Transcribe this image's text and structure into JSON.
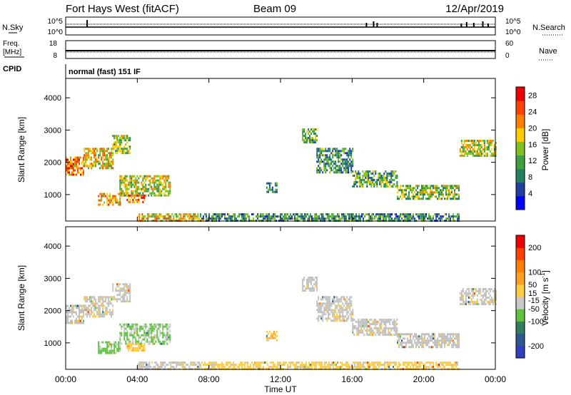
{
  "header": {
    "station": "Fort Hays West (fitACF)",
    "beam": "Beam 09",
    "date": "12/Apr/2019"
  },
  "top_panels": {
    "nsky": {
      "label": "N.Sky",
      "ticks": [
        "10^5",
        "10^0"
      ],
      "right_label": "N.Search",
      "right_ticks": [
        "10^5",
        "10^0"
      ]
    },
    "freq": {
      "label_line1": "Freq.",
      "label_line2": "[MHz]",
      "ticks": [
        "18",
        "8"
      ],
      "right_label": "Nave",
      "right_ticks": [
        "60",
        "0"
      ]
    },
    "cpid": {
      "label": "CPID",
      "value": "normal (fast) 151 IF"
    }
  },
  "colors": {
    "power_scale": [
      "#0000ff",
      "#2040a0",
      "#208060",
      "#40a040",
      "#80c020",
      "#ffcc00",
      "#ff8000",
      "#ff4000",
      "#ee0000"
    ],
    "velocity_scale": [
      "#3040c0",
      "#305890",
      "#308060",
      "#60c040",
      "#c8c8c8",
      "#ffcc40",
      "#ffa020",
      "#ff8000",
      "#ff4000",
      "#ee0000"
    ],
    "ground_scatter": "#c0c0c0"
  },
  "chart_data": [
    {
      "type": "heatmap",
      "name": "power",
      "xlabel": "Time UT",
      "ylabel": "Slant Range [km]",
      "xlim": [
        0,
        24
      ],
      "ylim": [
        180,
        4600
      ],
      "x_ticks": [
        "00:00",
        "04:00",
        "08:00",
        "12:00",
        "16:00",
        "20:00",
        "00:00"
      ],
      "y_ticks": [
        1000,
        2000,
        3000,
        4000
      ],
      "colorbar": {
        "label": "Power [dB]",
        "ticks": [
          4,
          8,
          12,
          16,
          20,
          24,
          28
        ],
        "range": [
          0,
          30
        ]
      },
      "regions": [
        {
          "t0": 0.0,
          "t1": 1.0,
          "r0": 1620,
          "r1": 2180,
          "value": 22
        },
        {
          "t0": 1.0,
          "t1": 2.6,
          "r0": 1850,
          "r1": 2450,
          "value": 18
        },
        {
          "t0": 2.6,
          "t1": 3.6,
          "r0": 2300,
          "r1": 2850,
          "value": 14
        },
        {
          "t0": 1.8,
          "t1": 3.0,
          "r0": 700,
          "r1": 1050,
          "value": 20
        },
        {
          "t0": 3.0,
          "t1": 5.8,
          "r0": 1000,
          "r1": 1600,
          "value": 16
        },
        {
          "t0": 3.4,
          "t1": 4.4,
          "r0": 750,
          "r1": 1000,
          "value": 24
        },
        {
          "t0": 4.0,
          "t1": 7.5,
          "r0": 180,
          "r1": 420,
          "value": 18
        },
        {
          "t0": 7.5,
          "t1": 22.0,
          "r0": 180,
          "r1": 420,
          "value": 10
        },
        {
          "t0": 11.2,
          "t1": 11.8,
          "r0": 1100,
          "r1": 1380,
          "value": 10
        },
        {
          "t0": 13.2,
          "t1": 14.0,
          "r0": 2600,
          "r1": 3050,
          "value": 12
        },
        {
          "t0": 14.0,
          "t1": 16.0,
          "r0": 1700,
          "r1": 2450,
          "value": 10
        },
        {
          "t0": 16.0,
          "t1": 18.5,
          "r0": 1250,
          "r1": 1750,
          "value": 12
        },
        {
          "t0": 18.5,
          "t1": 22.0,
          "r0": 900,
          "r1": 1300,
          "value": 14
        },
        {
          "t0": 22.0,
          "t1": 24.0,
          "r0": 2200,
          "r1": 2700,
          "value": 16
        }
      ]
    },
    {
      "type": "heatmap",
      "name": "velocity",
      "xlabel": "Time UT",
      "ylabel": "Slant Range [km]",
      "xlim": [
        0,
        24
      ],
      "ylim": [
        180,
        4600
      ],
      "x_ticks": [
        "00:00",
        "04:00",
        "08:00",
        "12:00",
        "16:00",
        "20:00",
        "00:00"
      ],
      "y_ticks": [
        1000,
        2000,
        3000,
        4000
      ],
      "colorbar": {
        "label": "Velocity [m s",
        "label_superscript": "-1",
        "label_end": "]",
        "ticks": [
          200,
          100,
          50,
          15,
          -15,
          -50,
          -100,
          -200
        ],
        "range": [
          -250,
          250
        ]
      },
      "regions": [
        {
          "t0": 0.0,
          "t1": 1.0,
          "r0": 1620,
          "r1": 2180,
          "value": 0
        },
        {
          "t0": 1.0,
          "t1": 2.6,
          "r0": 1850,
          "r1": 2450,
          "value": 0
        },
        {
          "t0": 2.6,
          "t1": 3.6,
          "r0": 2300,
          "r1": 2850,
          "value": 0
        },
        {
          "t0": 1.8,
          "t1": 3.0,
          "r0": 700,
          "r1": 1050,
          "value": -60
        },
        {
          "t0": 3.0,
          "t1": 5.8,
          "r0": 1000,
          "r1": 1600,
          "value": -50
        },
        {
          "t0": 3.4,
          "t1": 4.4,
          "r0": 750,
          "r1": 1000,
          "value": 40
        },
        {
          "t0": 4.0,
          "t1": 7.5,
          "r0": 180,
          "r1": 420,
          "value": 0
        },
        {
          "t0": 7.5,
          "t1": 22.0,
          "r0": 180,
          "r1": 420,
          "value": 30
        },
        {
          "t0": 11.2,
          "t1": 11.8,
          "r0": 1100,
          "r1": 1380,
          "value": 40
        },
        {
          "t0": 13.2,
          "t1": 14.0,
          "r0": 2600,
          "r1": 3050,
          "value": 0
        },
        {
          "t0": 14.0,
          "t1": 16.0,
          "r0": 1700,
          "r1": 2450,
          "value": 0
        },
        {
          "t0": 16.0,
          "t1": 18.5,
          "r0": 1250,
          "r1": 1750,
          "value": 0
        },
        {
          "t0": 18.5,
          "t1": 22.0,
          "r0": 900,
          "r1": 1300,
          "value": 0
        },
        {
          "t0": 22.0,
          "t1": 24.0,
          "r0": 2200,
          "r1": 2700,
          "value": 0
        }
      ]
    }
  ]
}
